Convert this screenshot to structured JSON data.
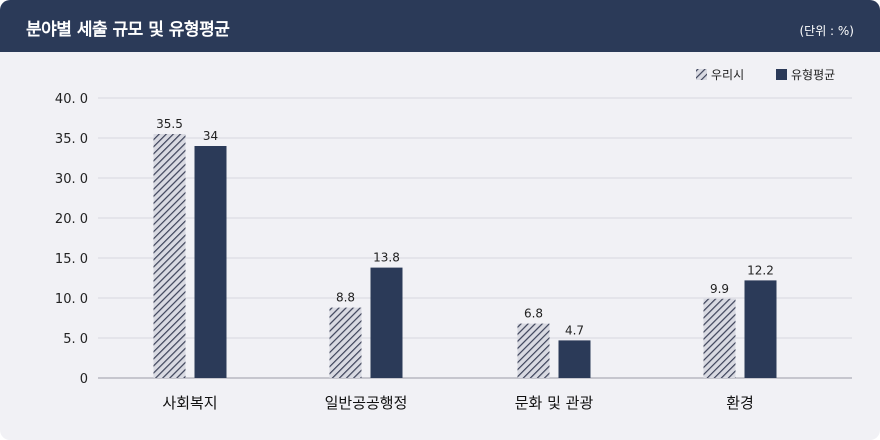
{
  "header": {
    "title": "분야별 세출 규모 및 유형평균",
    "unit": "(단위 : %)"
  },
  "colors": {
    "header_bg": "#2b3a58",
    "our_city": "#9a9db0",
    "type_avg": "#2b3a58"
  },
  "chart_data": {
    "type": "bar",
    "title": "분야별 세출 규모 및 유형평균",
    "unit": "(단위 : %)",
    "categories": [
      "사회복지",
      "일반공공행정",
      "문화 및 관광",
      "환경"
    ],
    "series": [
      {
        "name": "우리시",
        "values": [
          35.5,
          8.8,
          6.8,
          9.9
        ],
        "value_labels": [
          "35.5",
          "8.8",
          "6.8",
          "9.9"
        ],
        "pattern": "hatched"
      },
      {
        "name": "유형평균",
        "values": [
          34,
          13.8,
          4.7,
          12.2
        ],
        "value_labels": [
          "34",
          "13.8",
          "4.7",
          "12.2"
        ],
        "pattern": "solid"
      }
    ],
    "y_ticks": [
      0,
      5,
      10,
      15,
      20,
      30,
      35,
      40
    ],
    "y_tick_labels": [
      "0",
      "5. 0",
      "10. 0",
      "15. 0",
      "20. 0",
      "30. 0",
      "35. 0",
      "40. 0"
    ],
    "ylim": [
      0,
      40
    ],
    "grid": true,
    "legend_position": "top-right"
  }
}
